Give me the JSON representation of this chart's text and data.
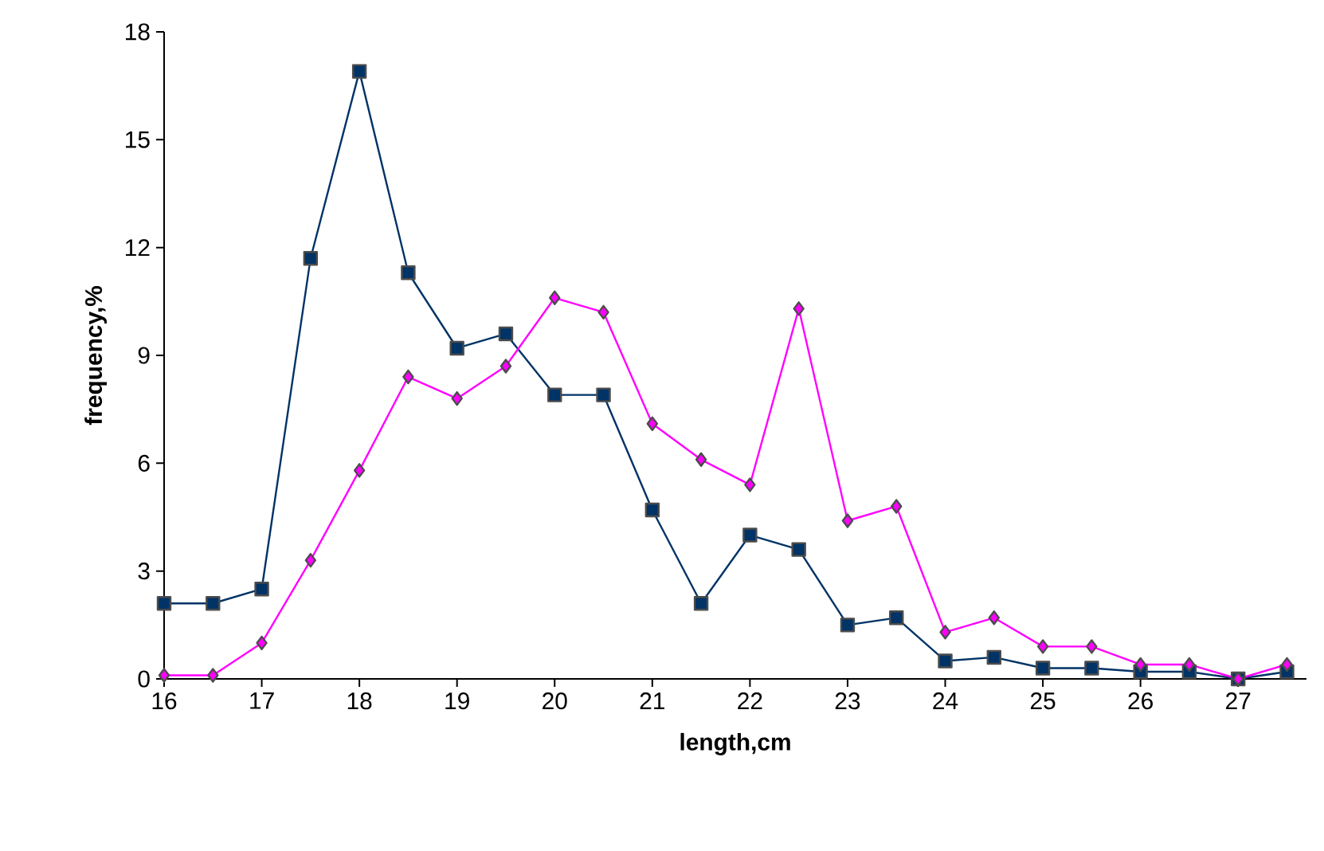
{
  "chart_data": {
    "type": "line",
    "xlabel": "length,cm",
    "ylabel": "frequency,%",
    "x": [
      16,
      16.5,
      17,
      17.5,
      18,
      18.5,
      19,
      19.5,
      20,
      20.5,
      21,
      21.5,
      22,
      22.5,
      23,
      23.5,
      24,
      24.5,
      25,
      25.5,
      26,
      26.5,
      27,
      27.5
    ],
    "series": [
      {
        "color": "#003366",
        "marker": "square",
        "values": [
          2.1,
          2.1,
          2.5,
          11.7,
          16.9,
          11.3,
          9.2,
          9.6,
          7.9,
          7.9,
          4.7,
          2.1,
          4.0,
          3.6,
          1.5,
          1.7,
          0.5,
          0.6,
          0.3,
          0.3,
          0.2,
          0.2,
          0.0,
          0.2
        ]
      },
      {
        "color": "#ff00ff",
        "marker": "diamond",
        "values": [
          0.1,
          0.1,
          1.0,
          3.3,
          5.8,
          8.4,
          7.8,
          8.7,
          10.6,
          10.2,
          7.1,
          6.1,
          5.4,
          10.3,
          4.4,
          4.8,
          1.3,
          1.7,
          0.9,
          0.9,
          0.4,
          0.4,
          0.0,
          0.4
        ]
      }
    ],
    "xlim": [
      16,
      27.7
    ],
    "xticks": [
      16,
      17,
      18,
      19,
      20,
      21,
      22,
      23,
      24,
      25,
      26,
      27
    ],
    "ylim": [
      0,
      18
    ],
    "yticks": [
      0,
      3,
      6,
      9,
      12,
      15,
      18
    ],
    "grid": false,
    "line_style": "solid"
  }
}
